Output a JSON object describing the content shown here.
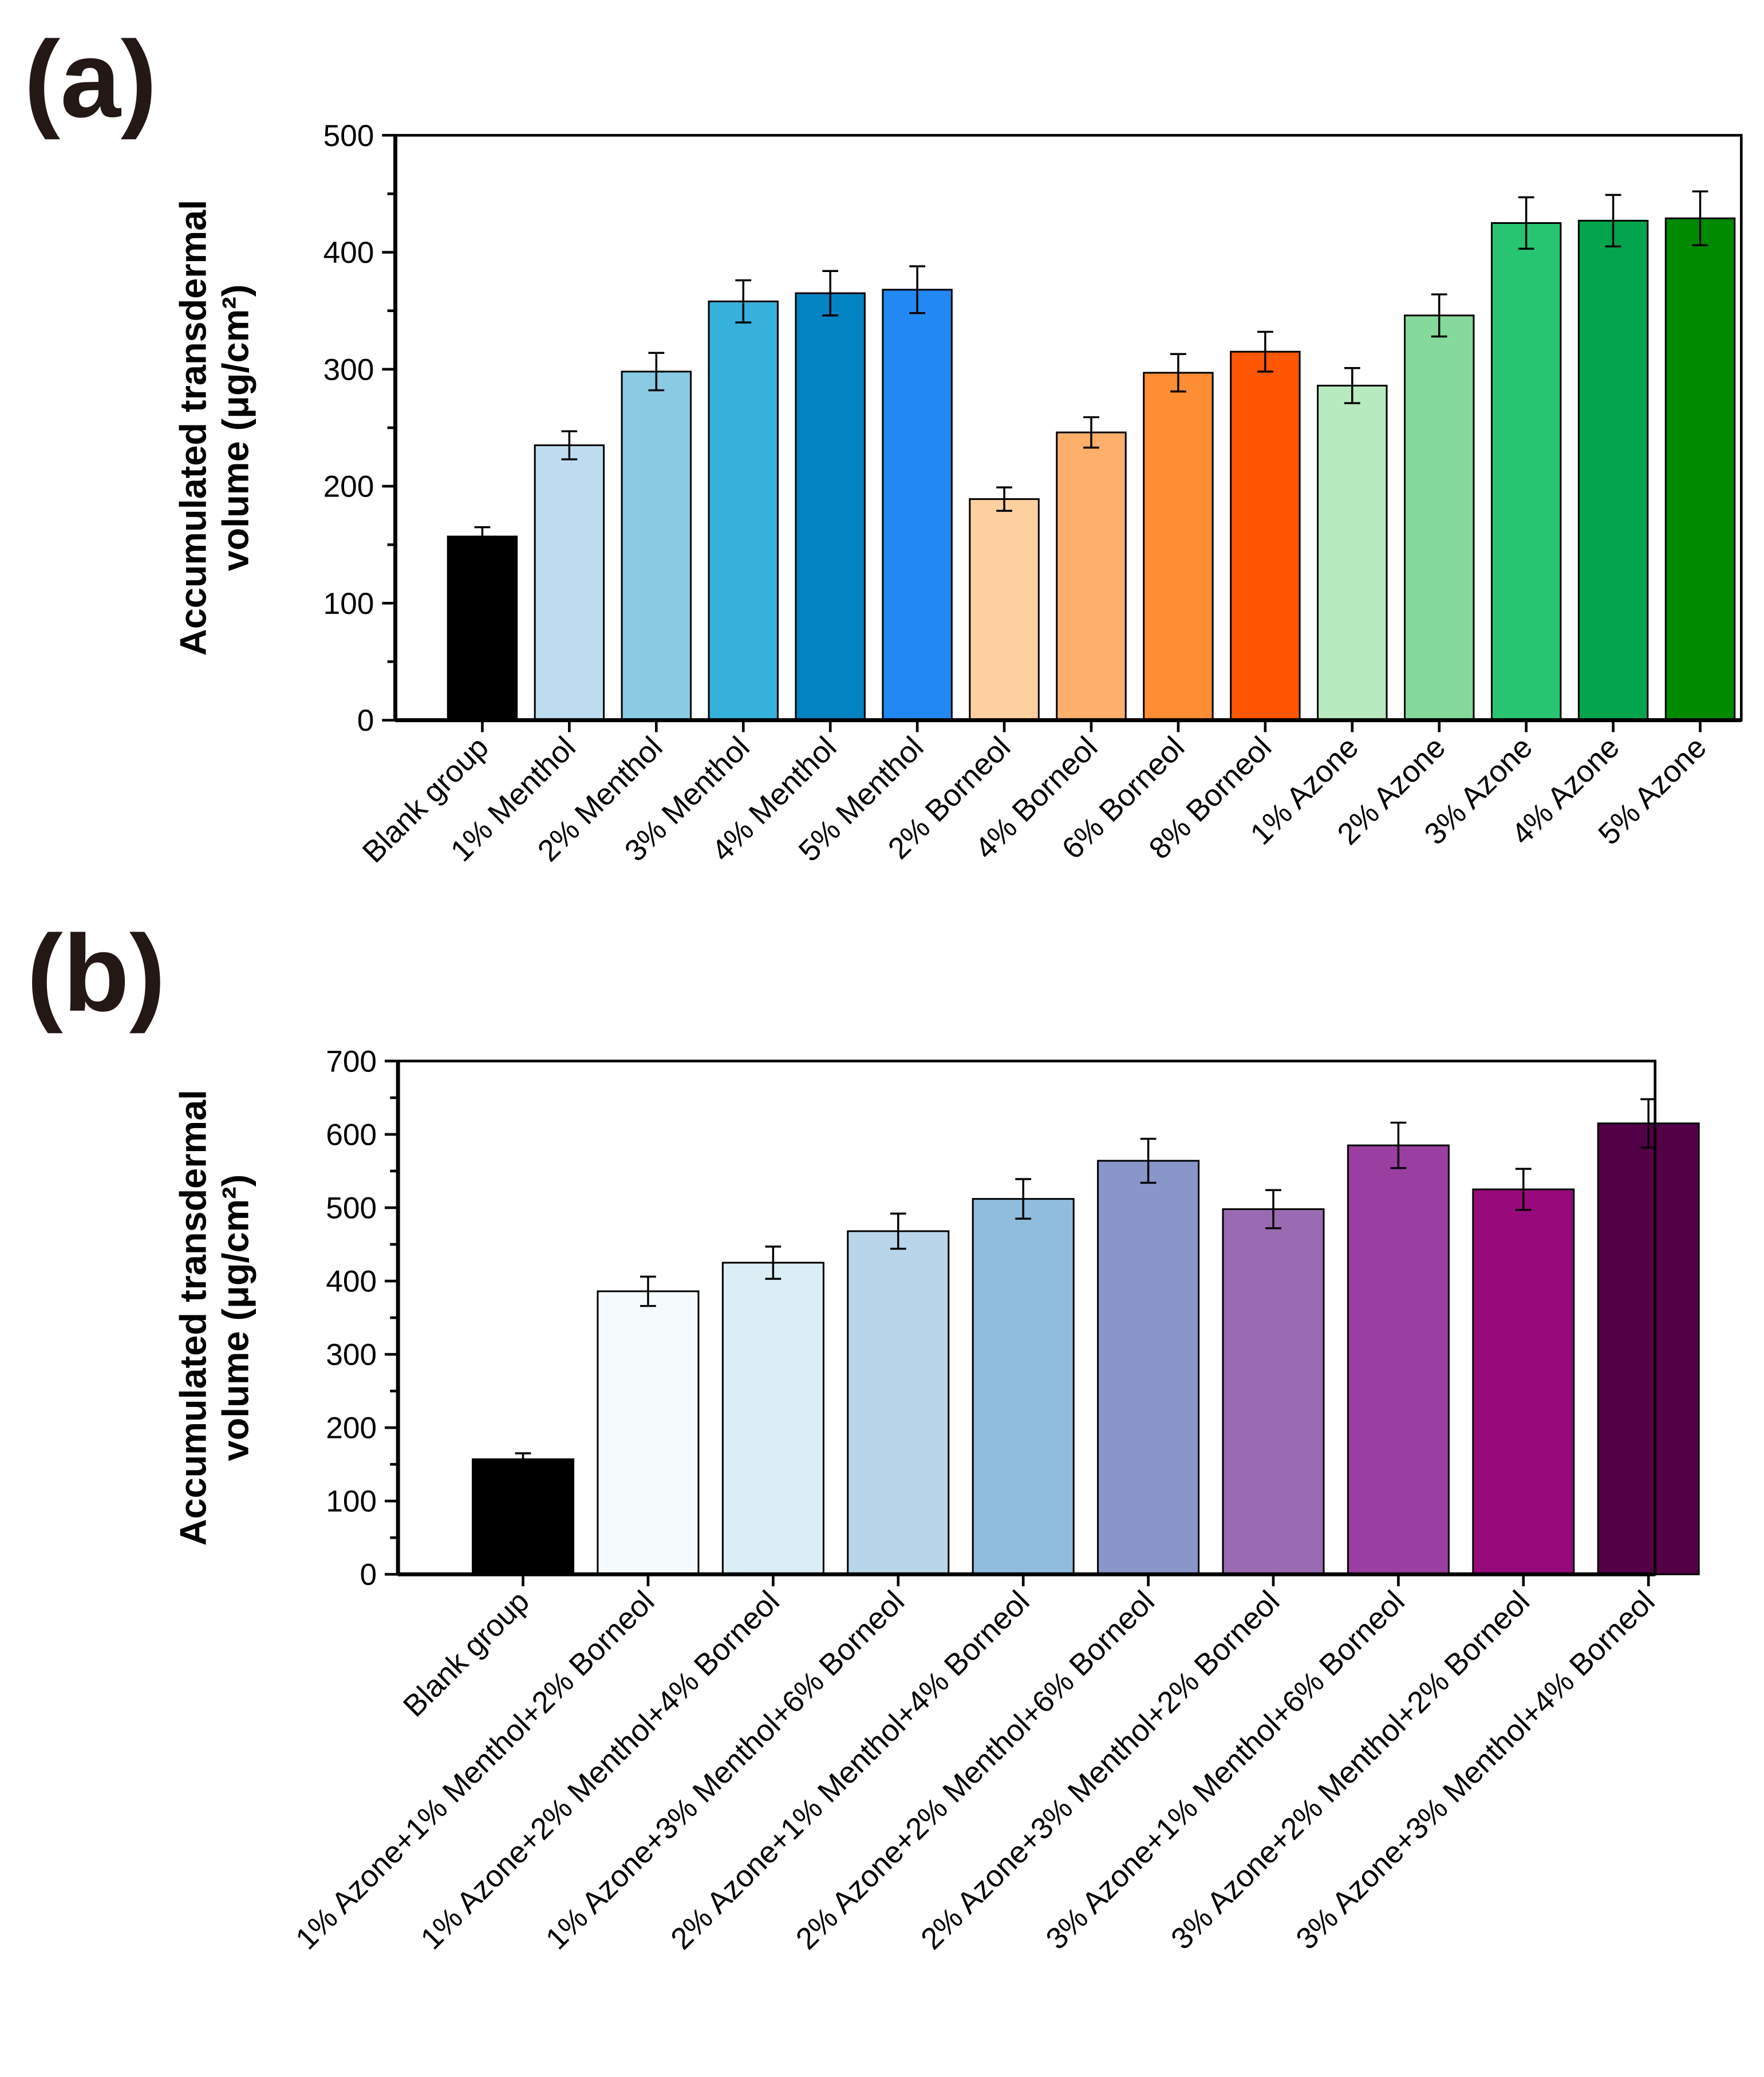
{
  "chart_data": [
    {
      "panel_label": "(a)",
      "type": "bar",
      "ylabel_line1": "Accumulated transdermal",
      "ylabel_line2": "volume (μg/cm²)",
      "ylim": [
        0,
        500
      ],
      "yticks": [
        0,
        100,
        200,
        300,
        400,
        500
      ],
      "categories": [
        "Blank group",
        "1% Menthol",
        "2% Menthol",
        "3% Menthol",
        "4% Menthol",
        "5% Menthol",
        "2% Borneol",
        "4% Borneol",
        "6% Borneol",
        "8% Borneol",
        "1% Azone",
        "2% Azone",
        "3% Azone",
        "4% Azone",
        "5% Azone"
      ],
      "values": [
        157,
        235,
        298,
        358,
        365,
        368,
        189,
        246,
        297,
        315,
        286,
        346,
        425,
        427,
        429
      ],
      "errors": [
        8,
        12,
        16,
        18,
        19,
        20,
        10,
        13,
        16,
        17,
        15,
        18,
        22,
        22,
        23
      ],
      "colors": [
        "#000000",
        "#bddcf0",
        "#89cbe3",
        "#36b1db",
        "#0383c2",
        "#2289f2",
        "#fed0a0",
        "#feaf6b",
        "#fe8d33",
        "#ff5602",
        "#b8eabf",
        "#85d99b",
        "#27c571",
        "#03a44c",
        "#008a00"
      ]
    },
    {
      "panel_label": "(b)",
      "type": "bar",
      "ylabel_line1": "Accumulated transdermal",
      "ylabel_line2": "volume (μg/cm²)",
      "ylim": [
        0,
        700
      ],
      "yticks": [
        0,
        100,
        200,
        300,
        400,
        500,
        600,
        700
      ],
      "categories": [
        "Blank group",
        "1% Azone+1% Menthol+2% Borneol",
        "1% Azone+2% Menthol+4% Borneol",
        "1% Azone+3% Menthol+6% Borneol",
        "2% Azone+1% Menthol+4% Borneol",
        "2% Azone+2% Menthol+6% Borneol",
        "2% Azone+3% Menthol+2% Borneol",
        "3% Azone+1% Menthol+6% Borneol",
        "3% Azone+2% Menthol+2% Borneol",
        "3% Azone+3% Menthol+4% Borneol"
      ],
      "values": [
        157,
        386,
        425,
        468,
        512,
        564,
        498,
        585,
        525,
        615
      ],
      "errors": [
        8,
        20,
        22,
        24,
        27,
        30,
        26,
        31,
        28,
        33
      ],
      "colors": [
        "#000000",
        "#f5fbfd",
        "#dbedf5",
        "#b9d5e9",
        "#90bcdd",
        "#8896c9",
        "#9a6bb2",
        "#9b3ea1",
        "#970a7b",
        "#540046"
      ]
    }
  ]
}
